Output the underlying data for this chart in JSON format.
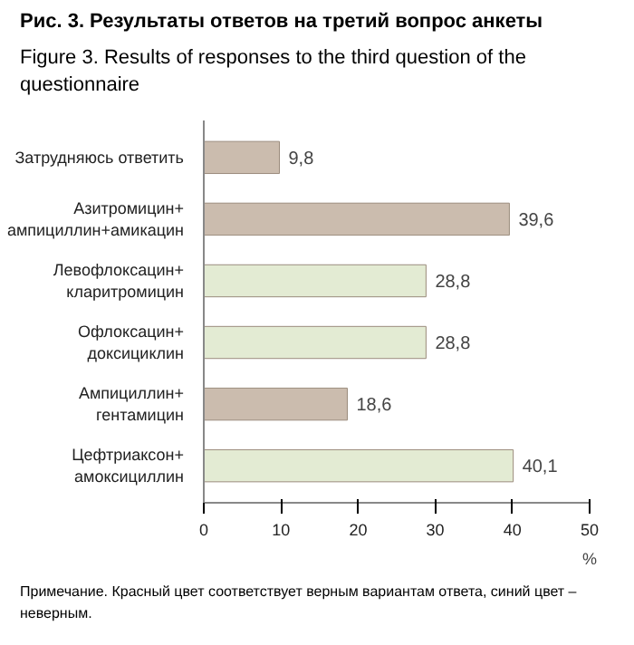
{
  "chart_data": {
    "type": "bar",
    "orientation": "horizontal",
    "title": "Рис. 3. Результаты ответов на третий вопрос анкеты",
    "subtitle": "Figure 3. Results of responses to the third question of the questionnaire",
    "xlabel": "%",
    "categories": [
      "Затрудняюсь ответить",
      "Азитромицин+\nампициллин+амикацин",
      "Левофлоксацин+\nкларитромицин",
      "Офлоксацин+\nдоксициклин",
      "Ампициллин+\nгентамицин",
      "Цефтриаксон+\nамоксициллин"
    ],
    "values": [
      9.8,
      39.6,
      28.8,
      28.8,
      18.6,
      40.1
    ],
    "colors": [
      "#cbbcae",
      "#cbbcae",
      "#e3ebd3",
      "#e3ebd3",
      "#cbbcae",
      "#e3ebd3"
    ],
    "value_labels": [
      "9,8",
      "39,6",
      "28,8",
      "28,8",
      "18,6",
      "40,1"
    ],
    "xlim": [
      0,
      50
    ],
    "xticks": [
      0,
      10,
      20,
      30,
      40,
      50
    ],
    "grid": false,
    "annotations": [
      "Примечание. Красный цвет соответствует верным вариантам ответа, синий цвет – неверным."
    ]
  }
}
